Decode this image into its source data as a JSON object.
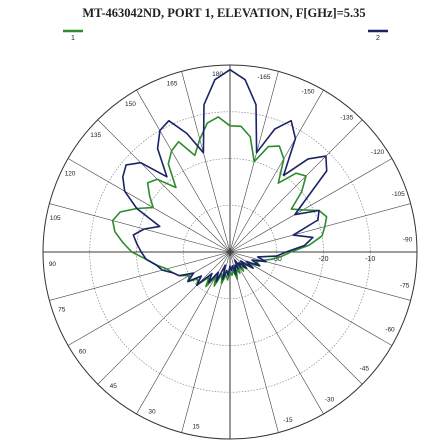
{
  "chart_data": {
    "type": "polar",
    "title": "MT-463042ND, PORT 1, ELEVATION, F[GHz]=5.35",
    "rlim": [
      -40,
      0
    ],
    "rticks": [
      -30,
      -20,
      -10
    ],
    "angleticks": [
      180,
      165,
      150,
      135,
      120,
      105,
      90,
      75,
      60,
      45,
      30,
      15,
      -15,
      -30,
      -45,
      -60,
      -75,
      -90,
      -105,
      -120,
      -135,
      -150,
      -165
    ],
    "x": [
      -180,
      -175,
      -170,
      -165,
      -160,
      -155,
      -150,
      -145,
      -140,
      -135,
      -130,
      -125,
      -120,
      -115,
      -110,
      -105,
      -100,
      -95,
      -90,
      -85,
      -80,
      -75,
      -70,
      -65,
      -60,
      -55,
      -50,
      -45,
      -40,
      -35,
      -30,
      -25,
      -20,
      -15,
      -10,
      -5,
      0,
      5,
      10,
      15,
      20,
      25,
      30,
      35,
      40,
      45,
      50,
      55,
      60,
      65,
      70,
      75,
      80,
      85,
      90,
      95,
      100,
      105,
      110,
      115,
      120,
      125,
      130,
      135,
      140,
      145,
      150,
      155,
      160,
      165,
      170,
      175
    ],
    "series": [
      {
        "name": "1",
        "color": "#2e8b2e",
        "values": [
          -13,
          -13,
          -15,
          -20,
          -16,
          -15,
          -17,
          -22,
          -18,
          -17,
          -20,
          -24,
          -22,
          -19,
          -18,
          -19,
          -20,
          -23,
          -27,
          -29,
          -31,
          -33,
          -34,
          -33,
          -35,
          -34,
          -36,
          -35,
          -36,
          -35,
          -37,
          -35,
          -36,
          -34,
          -36,
          -35,
          -36,
          -34,
          -35,
          -33,
          -35,
          -32,
          -34,
          -31,
          -33,
          -30,
          -31,
          -29,
          -30,
          -28,
          -27,
          -26,
          -24,
          -22,
          -19,
          -17,
          -15,
          -14,
          -15,
          -18,
          -21,
          -19,
          -17,
          -18,
          -22,
          -17,
          -15,
          -14,
          -18,
          -15,
          -12,
          -11
        ]
      },
      {
        "name": "2",
        "color": "#1a2366",
        "values": [
          -1,
          -3,
          -8,
          -18,
          -12,
          -9,
          -12,
          -20,
          -14,
          -11,
          -13,
          -20,
          -24,
          -19,
          -20,
          -26,
          -22,
          -24,
          -28,
          -30,
          -34,
          -32,
          -35,
          -33,
          -36,
          -34,
          -37,
          -35,
          -37,
          -36,
          -38,
          -36,
          -37,
          -35,
          -37,
          -36,
          -37,
          -35,
          -36,
          -34,
          -37,
          -33,
          -35,
          -32,
          -34,
          -30,
          -32,
          -29,
          -31,
          -28,
          -27,
          -25,
          -24,
          -22,
          -21,
          -20,
          -19,
          -21,
          -24,
          -18,
          -14,
          -12,
          -11,
          -13,
          -19,
          -13,
          -10,
          -9,
          -13,
          -18,
          -8,
          -3
        ]
      }
    ]
  }
}
